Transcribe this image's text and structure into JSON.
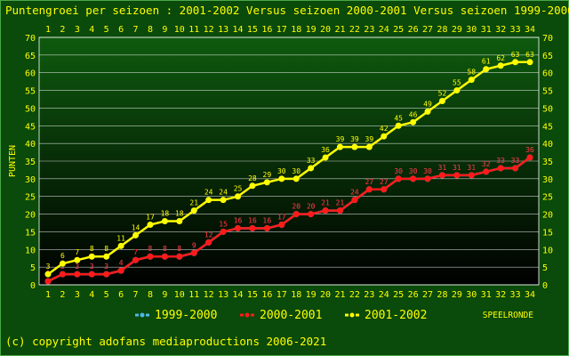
{
  "chart_data": {
    "type": "line",
    "title": "Puntengroei per seizoen : 2001-2002 Versus seizoen 2000-2001 Versus seizoen 1999-2000",
    "ylabel": "PUNTEN",
    "xlabel": "SPEELRONDE",
    "x": [
      1,
      2,
      3,
      4,
      5,
      6,
      7,
      8,
      9,
      10,
      11,
      12,
      13,
      14,
      15,
      16,
      17,
      18,
      19,
      20,
      21,
      22,
      23,
      24,
      25,
      26,
      27,
      28,
      29,
      30,
      31,
      32,
      33,
      34
    ],
    "yticks": [
      0,
      5,
      10,
      15,
      20,
      25,
      30,
      35,
      40,
      45,
      50,
      55,
      60,
      65,
      70
    ],
    "ylim": [
      0,
      70
    ],
    "grid": true,
    "legend_position": "bottom",
    "series": [
      {
        "name": "1999-2000",
        "color": "#4db8e8",
        "values": [
          1,
          3,
          3,
          3,
          3,
          4,
          7,
          8,
          8,
          8,
          9,
          12,
          15,
          16,
          16,
          16,
          17,
          20,
          20,
          21,
          21,
          24,
          27,
          27,
          30,
          30,
          30,
          31,
          31,
          31,
          32,
          33,
          33,
          36
        ]
      },
      {
        "name": "2000-2001",
        "color": "#ff1a1a",
        "values": [
          1,
          3,
          3,
          3,
          3,
          4,
          7,
          8,
          8,
          8,
          9,
          12,
          15,
          16,
          16,
          16,
          17,
          20,
          20,
          21,
          21,
          24,
          27,
          27,
          30,
          30,
          30,
          31,
          31,
          31,
          32,
          33,
          33,
          36
        ]
      },
      {
        "name": "2001-2002",
        "color": "#ffff00",
        "values": [
          3,
          6,
          7,
          8,
          8,
          11,
          14,
          17,
          18,
          18,
          21,
          24,
          24,
          25,
          28,
          29,
          30,
          30,
          33,
          36,
          39,
          39,
          39,
          42,
          45,
          46,
          49,
          52,
          55,
          58,
          61,
          62,
          63,
          63
        ]
      }
    ]
  },
  "footer": {
    "copyright": "(c) copyright adofans mediaproductions 2006-2021"
  }
}
